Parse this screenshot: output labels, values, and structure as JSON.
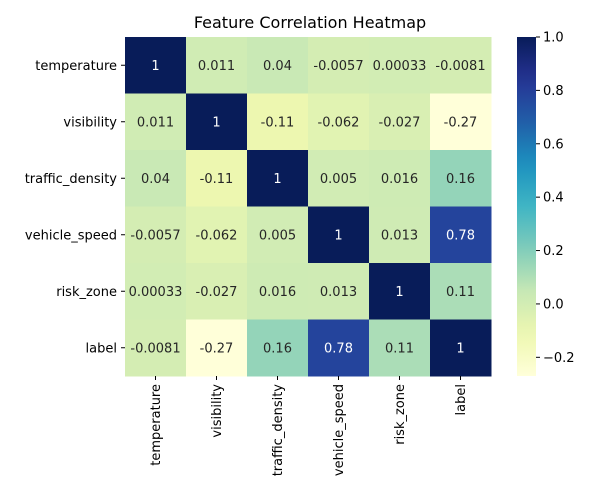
{
  "chart_data": {
    "type": "heatmap",
    "title": "Feature Correlation Heatmap",
    "xlabel": "",
    "ylabel": "",
    "row_labels": [
      "temperature",
      "visibility",
      "traffic_density",
      "vehicle_speed",
      "risk_zone",
      "label"
    ],
    "col_labels": [
      "temperature",
      "visibility",
      "traffic_density",
      "vehicle_speed",
      "risk_zone",
      "label"
    ],
    "values": [
      [
        1,
        0.011,
        0.04,
        -0.0057,
        0.00033,
        -0.0081
      ],
      [
        0.011,
        1,
        -0.11,
        -0.062,
        -0.027,
        -0.27
      ],
      [
        0.04,
        -0.11,
        1,
        0.005,
        0.016,
        0.16
      ],
      [
        -0.0057,
        -0.062,
        0.005,
        1,
        0.013,
        0.78
      ],
      [
        0.00033,
        -0.027,
        0.016,
        0.013,
        1,
        0.11
      ],
      [
        -0.0081,
        -0.27,
        0.16,
        0.78,
        0.11,
        1
      ]
    ],
    "cell_text": [
      [
        "1",
        "0.011",
        "0.04",
        "-0.0057",
        "0.00033",
        "-0.0081"
      ],
      [
        "0.011",
        "1",
        "-0.11",
        "-0.062",
        "-0.027",
        "-0.27"
      ],
      [
        "0.04",
        "-0.11",
        "1",
        "0.005",
        "0.016",
        "0.16"
      ],
      [
        "-0.0057",
        "-0.062",
        "0.005",
        "1",
        "0.013",
        "0.78"
      ],
      [
        "0.00033",
        "-0.027",
        "0.016",
        "0.013",
        "1",
        "0.11"
      ],
      [
        "-0.0081",
        "-0.27",
        "0.16",
        "0.78",
        "0.11",
        "1"
      ]
    ],
    "colormap": "YlGnBu",
    "color_range": [
      -0.27,
      1.0
    ],
    "colorbar": {
      "ticks": [
        -0.2,
        0.0,
        0.2,
        0.4,
        0.6,
        0.8,
        1.0
      ],
      "tick_labels": [
        "−0.2",
        "0.0",
        "0.2",
        "0.4",
        "0.6",
        "0.8",
        "1.0"
      ]
    },
    "grid": false,
    "legend": "colorbar-right"
  }
}
